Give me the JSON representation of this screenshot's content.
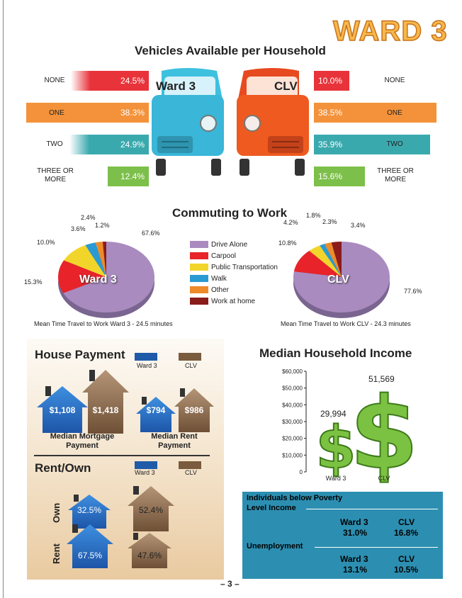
{
  "header": {
    "ward_title": "WARD 3"
  },
  "vehicles": {
    "title": "Vehicles Available per Household",
    "left_name": "Ward 3",
    "right_name": "CLV",
    "categories": [
      "NONE",
      "ONE",
      "TWO",
      "THREE OR MORE"
    ],
    "ward3": [
      "24.5%",
      "38.3%",
      "24.9%",
      "12.4%"
    ],
    "clv": [
      "10.0%",
      "38.5%",
      "35.9%",
      "15.6%"
    ],
    "colors": [
      "#e8333a",
      "#f3923a",
      "#3aa9ae",
      "#7cbf4a"
    ]
  },
  "commuting": {
    "title": "Commuting to Work",
    "legend": [
      "Drive Alone",
      "Carpool",
      "Public Transportation",
      "Walk",
      "Other",
      "Work at home"
    ],
    "legend_colors": [
      "#a98bc0",
      "#e8232a",
      "#f2d52a",
      "#2a9ad2",
      "#ee8a2a",
      "#8a1c1c"
    ],
    "ward3_label": "Ward 3",
    "clv_label": "CLV",
    "ward3_values": [
      "67.6%",
      "15.3%",
      "10.0%",
      "3.6%",
      "2.4%",
      "1.2%"
    ],
    "clv_values": [
      "77.6%",
      "10.8%",
      "4.2%",
      "1.8%",
      "2.3%",
      "3.4%"
    ],
    "ward3_mean": "Mean Time Travel to Work Ward 3 - 24.5 minutes",
    "clv_mean": "Mean Time Travel to Work CLV - 24.3 minutes"
  },
  "house_payment": {
    "title": "House Payment",
    "key_ward3": "Ward 3",
    "key_clv": "CLV",
    "mortgage_ward3": "$1,108",
    "mortgage_clv": "$1,418",
    "mortgage_caption": "Median Mortgage Payment",
    "rent_ward3": "$794",
    "rent_clv": "$986",
    "rent_caption": "Median Rent Payment"
  },
  "rent_own": {
    "title": "Rent/Own",
    "key_ward3": "Ward 3",
    "key_clv": "CLV",
    "own_label": "Own",
    "rent_label": "Rent",
    "own_ward3": "32.5%",
    "own_clv": "52.4%",
    "rent_ward3": "67.5%",
    "rent_clv": "47.6%"
  },
  "income": {
    "title": "Median Household Income",
    "ward3_value": "29,994",
    "clv_value": "51,569"
  },
  "chart_data": {
    "type": "bar",
    "categories": [
      "Ward 3",
      "CLV"
    ],
    "values": [
      29994,
      51569
    ],
    "title": "Median Household Income",
    "ylim": [
      0,
      60000
    ],
    "yticks": [
      "0",
      "$10,000",
      "$20,000",
      "$30,000",
      "$40,000",
      "$50,000",
      "$60,000"
    ]
  },
  "poverty": {
    "heading": "Individuals below Poverty Level Income",
    "heading_line1": "Individuals below Poverty",
    "heading_line2": "Level Income",
    "ward3_label": "Ward 3",
    "clv_label": "CLV",
    "ward3_value": "31.0%",
    "clv_value": "16.8%",
    "unemployment_label": "Unemployment",
    "unemp_ward3": "13.1%",
    "unemp_clv": "10.5%"
  },
  "footer": {
    "page_number": "– 3 –"
  }
}
